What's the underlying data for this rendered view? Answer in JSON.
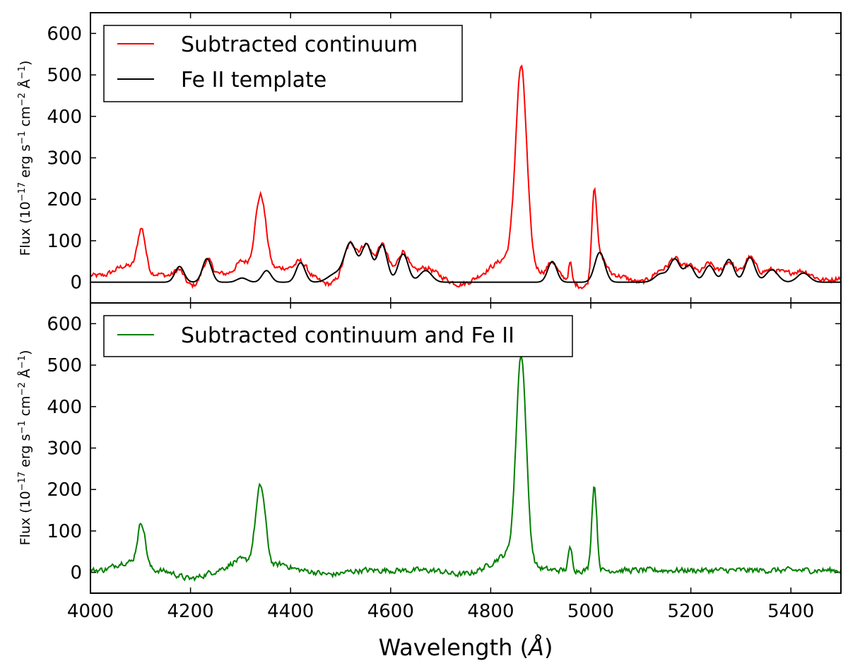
{
  "chart_data": [
    {
      "type": "line",
      "panel": "top",
      "x_range": [
        4000,
        5500
      ],
      "ylim": [
        -50,
        650
      ],
      "yticks": [
        0,
        100,
        200,
        300,
        400,
        500,
        600
      ],
      "ylabel": "Flux (10⁻¹⁷ erg s⁻¹ cm⁻² Å⁻¹)",
      "ylabel_parts": {
        "base": "Flux (10",
        "e1": "−17",
        "t1": " erg s",
        "e2": "−1",
        "t2": " cm",
        "e3": "−2",
        "t3": " Å",
        "e4": "−1",
        "end": ")"
      },
      "legend_position": "top-left",
      "series": [
        {
          "name": "Subtracted continuum",
          "color": "#ff0000",
          "baseline": 20,
          "noise": 9,
          "peaks": [
            [
              4102,
              105,
              8
            ],
            [
              4070,
              20,
              20
            ],
            [
              4178,
              30,
              10
            ],
            [
              4233,
              45,
              10
            ],
            [
              4303,
              30,
              12
            ],
            [
              4340,
              190,
              11
            ],
            [
              4383,
              15,
              15
            ],
            [
              4420,
              30,
              12
            ],
            [
              4520,
              80,
              14
            ],
            [
              4552,
              65,
              10
            ],
            [
              4583,
              70,
              11
            ],
            [
              4625,
              55,
              10
            ],
            [
              4670,
              15,
              15
            ],
            [
              4840,
              40,
              30
            ],
            [
              4861,
              470,
              11
            ],
            [
              4923,
              30,
              8
            ],
            [
              4959,
              45,
              3
            ],
            [
              5007,
              210,
              5
            ],
            [
              5020,
              50,
              10
            ],
            [
              5140,
              15,
              15
            ],
            [
              5168,
              35,
              10
            ],
            [
              5197,
              20,
              10
            ],
            [
              5237,
              25,
              10
            ],
            [
              5276,
              30,
              10
            ],
            [
              5318,
              40,
              10
            ],
            [
              5362,
              10,
              15
            ],
            [
              5425,
              10,
              15
            ]
          ],
          "dips": [
            [
              4020,
              5
            ],
            [
              4200,
              30
            ],
            [
              4480,
              25
            ],
            [
              4740,
              25
            ],
            [
              4985,
              30
            ],
            [
              5100,
              20
            ],
            [
              5470,
              15
            ]
          ]
        },
        {
          "name": "Fe II template",
          "color": "#000000",
          "baseline": 0,
          "noise": 0,
          "peaks": [
            [
              4178,
              38,
              9
            ],
            [
              4233,
              57,
              9
            ],
            [
              4303,
              10,
              10
            ],
            [
              4352,
              28,
              9
            ],
            [
              4420,
              47,
              9
            ],
            [
              4520,
              93,
              12
            ],
            [
              4552,
              90,
              10
            ],
            [
              4583,
              90,
              10
            ],
            [
              4625,
              68,
              10
            ],
            [
              4670,
              28,
              12
            ],
            [
              4490,
              20,
              15
            ],
            [
              4923,
              50,
              9
            ],
            [
              5018,
              72,
              10
            ],
            [
              5140,
              20,
              12
            ],
            [
              5168,
              55,
              10
            ],
            [
              5197,
              40,
              10
            ],
            [
              5237,
              40,
              10
            ],
            [
              5276,
              55,
              10
            ],
            [
              5318,
              60,
              10
            ],
            [
              5362,
              30,
              12
            ],
            [
              5425,
              22,
              12
            ]
          ],
          "dips": []
        }
      ]
    },
    {
      "type": "line",
      "panel": "bottom",
      "x_range": [
        4000,
        5500
      ],
      "ylim": [
        -50,
        650
      ],
      "yticks": [
        0,
        100,
        200,
        300,
        400,
        500,
        600
      ],
      "xticks": [
        4000,
        4200,
        4400,
        4600,
        4800,
        5000,
        5200,
        5400
      ],
      "xlabel": "Wavelength (Å)",
      "xlabel_parts": {
        "base": "Wavelength (",
        "unit": "Å",
        "end": ")"
      },
      "ylabel": "Flux (10⁻¹⁷ erg s⁻¹ cm⁻² Å⁻¹)",
      "ylabel_parts": {
        "base": "Flux (10",
        "e1": "−17",
        "t1": " erg s",
        "e2": "−1",
        "t2": " cm",
        "e3": "−2",
        "t3": " Å",
        "e4": "−1",
        "end": ")"
      },
      "legend_position": "top-left",
      "series": [
        {
          "name": "Subtracted continuum and Fe II",
          "color": "#008000",
          "baseline": 5,
          "noise": 10,
          "peaks": [
            [
              4102,
              110,
              8
            ],
            [
              4070,
              20,
              20
            ],
            [
              4340,
              200,
              10
            ],
            [
              4300,
              25,
              20
            ],
            [
              4383,
              15,
              15
            ],
            [
              4840,
              40,
              30
            ],
            [
              4861,
              490,
              10
            ],
            [
              4959,
              52,
              4
            ],
            [
              5007,
              205,
              5
            ]
          ],
          "dips": [
            [
              4200,
              20
            ],
            [
              4480,
              10
            ],
            [
              4740,
              10
            ]
          ]
        }
      ]
    }
  ]
}
